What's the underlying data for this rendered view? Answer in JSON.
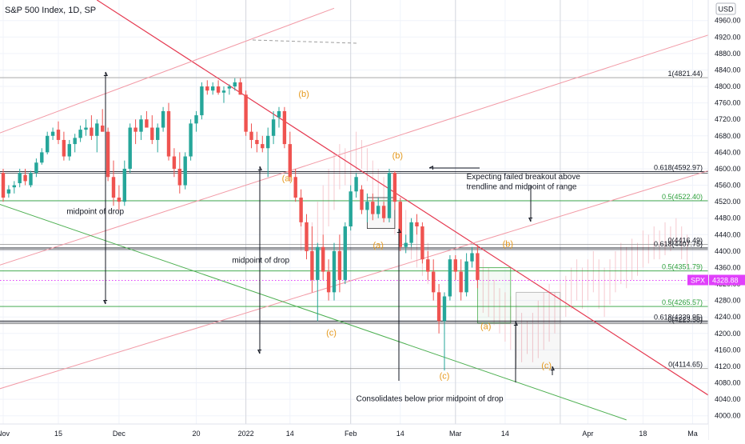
{
  "header": {
    "title": "S&P 500 Index, 1D, SP",
    "currency": "USD"
  },
  "chart_data": {
    "type": "candlestick",
    "title": "S&P 500 Index, 1D, SP",
    "y_axis": {
      "position": "right",
      "min": 3980,
      "max": 5010,
      "ticks": [
        4000,
        4040,
        4080,
        4120,
        4160,
        4200,
        4240,
        4280,
        4320,
        4360,
        4400,
        4440,
        4480,
        4520,
        4560,
        4600,
        4640,
        4680,
        4720,
        4760,
        4800,
        4840,
        4880,
        4920,
        4960
      ]
    },
    "x_axis": {
      "ticks": [
        {
          "label": "Nov",
          "x": 0
        },
        {
          "label": "15",
          "x": 10
        },
        {
          "label": "Dec",
          "x": 21
        },
        {
          "label": "20",
          "x": 35
        },
        {
          "label": "2022",
          "x": 44
        },
        {
          "label": "14",
          "x": 52
        },
        {
          "label": "Feb",
          "x": 63
        },
        {
          "label": "14",
          "x": 72
        },
        {
          "label": "Mar",
          "x": 82
        },
        {
          "label": "14",
          "x": 91
        },
        {
          "label": "Apr",
          "x": 106
        },
        {
          "label": "18",
          "x": 116
        },
        {
          "label": "Ma",
          "x": 125
        }
      ]
    },
    "last_price": {
      "label": "SPX",
      "value": 4328.88,
      "color": "#e040fb"
    },
    "candles": [
      {
        "x": 0,
        "o": 4590,
        "h": 4600,
        "l": 4520,
        "c": 4530
      },
      {
        "x": 1,
        "o": 4540,
        "h": 4560,
        "l": 4530,
        "c": 4550
      },
      {
        "x": 2,
        "o": 4555,
        "h": 4570,
        "l": 4540,
        "c": 4560
      },
      {
        "x": 3,
        "o": 4565,
        "h": 4600,
        "l": 4555,
        "c": 4590
      },
      {
        "x": 4,
        "o": 4585,
        "h": 4600,
        "l": 4560,
        "c": 4570
      },
      {
        "x": 5,
        "o": 4560,
        "h": 4595,
        "l": 4555,
        "c": 4590
      },
      {
        "x": 6,
        "o": 4590,
        "h": 4625,
        "l": 4580,
        "c": 4615
      },
      {
        "x": 7,
        "o": 4615,
        "h": 4650,
        "l": 4610,
        "c": 4640
      },
      {
        "x": 8,
        "o": 4640,
        "h": 4690,
        "l": 4635,
        "c": 4680
      },
      {
        "x": 9,
        "o": 4680,
        "h": 4700,
        "l": 4670,
        "c": 4690
      },
      {
        "x": 10,
        "o": 4695,
        "h": 4715,
        "l": 4660,
        "c": 4670
      },
      {
        "x": 11,
        "o": 4670,
        "h": 4690,
        "l": 4620,
        "c": 4630
      },
      {
        "x": 12,
        "o": 4630,
        "h": 4670,
        "l": 4620,
        "c": 4660
      },
      {
        "x": 13,
        "o": 4660,
        "h": 4685,
        "l": 4640,
        "c": 4675
      },
      {
        "x": 14,
        "o": 4675,
        "h": 4705,
        "l": 4665,
        "c": 4695
      },
      {
        "x": 15,
        "o": 4695,
        "h": 4720,
        "l": 4680,
        "c": 4700
      },
      {
        "x": 16,
        "o": 4700,
        "h": 4730,
        "l": 4670,
        "c": 4680
      },
      {
        "x": 17,
        "o": 4680,
        "h": 4720,
        "l": 4640,
        "c": 4710
      },
      {
        "x": 18,
        "o": 4705,
        "h": 4745,
        "l": 4690,
        "c": 4690
      },
      {
        "x": 19,
        "o": 4690,
        "h": 4700,
        "l": 4570,
        "c": 4580
      },
      {
        "x": 20,
        "o": 4580,
        "h": 4620,
        "l": 4510,
        "c": 4530
      },
      {
        "x": 21,
        "o": 4530,
        "h": 4560,
        "l": 4500,
        "c": 4520
      },
      {
        "x": 22,
        "o": 4520,
        "h": 4620,
        "l": 4510,
        "c": 4600
      },
      {
        "x": 23,
        "o": 4600,
        "h": 4710,
        "l": 4590,
        "c": 4700
      },
      {
        "x": 24,
        "o": 4700,
        "h": 4720,
        "l": 4660,
        "c": 4690
      },
      {
        "x": 25,
        "o": 4690,
        "h": 4730,
        "l": 4670,
        "c": 4720
      },
      {
        "x": 26,
        "o": 4720,
        "h": 4740,
        "l": 4700,
        "c": 4700
      },
      {
        "x": 27,
        "o": 4700,
        "h": 4730,
        "l": 4660,
        "c": 4670
      },
      {
        "x": 28,
        "o": 4670,
        "h": 4710,
        "l": 4640,
        "c": 4700
      },
      {
        "x": 29,
        "o": 4700,
        "h": 4750,
        "l": 4690,
        "c": 4740
      },
      {
        "x": 30,
        "o": 4740,
        "h": 4760,
        "l": 4620,
        "c": 4630
      },
      {
        "x": 31,
        "o": 4630,
        "h": 4650,
        "l": 4580,
        "c": 4600
      },
      {
        "x": 32,
        "o": 4600,
        "h": 4640,
        "l": 4540,
        "c": 4560
      },
      {
        "x": 33,
        "o": 4560,
        "h": 4640,
        "l": 4550,
        "c": 4630
      },
      {
        "x": 34,
        "o": 4630,
        "h": 4720,
        "l": 4620,
        "c": 4710
      },
      {
        "x": 35,
        "o": 4710,
        "h": 4740,
        "l": 4690,
        "c": 4730
      },
      {
        "x": 36,
        "o": 4730,
        "h": 4810,
        "l": 4720,
        "c": 4800
      },
      {
        "x": 37,
        "o": 4800,
        "h": 4815,
        "l": 4780,
        "c": 4790
      },
      {
        "x": 38,
        "o": 4790,
        "h": 4810,
        "l": 4780,
        "c": 4800
      },
      {
        "x": 39,
        "o": 4800,
        "h": 4815,
        "l": 4780,
        "c": 4785
      },
      {
        "x": 40,
        "o": 4785,
        "h": 4800,
        "l": 4760,
        "c": 4790
      },
      {
        "x": 41,
        "o": 4795,
        "h": 4805,
        "l": 4780,
        "c": 4800
      },
      {
        "x": 42,
        "o": 4800,
        "h": 4820,
        "l": 4790,
        "c": 4810
      },
      {
        "x": 43,
        "o": 4810,
        "h": 4820,
        "l": 4780,
        "c": 4780
      },
      {
        "x": 44,
        "o": 4780,
        "h": 4790,
        "l": 4680,
        "c": 4690
      },
      {
        "x": 45,
        "o": 4690,
        "h": 4710,
        "l": 4650,
        "c": 4670
      },
      {
        "x": 46,
        "o": 4670,
        "h": 4690,
        "l": 4640,
        "c": 4660
      },
      {
        "x": 47,
        "o": 4660,
        "h": 4680,
        "l": 4640,
        "c": 4650
      },
      {
        "x": 48,
        "o": 4650,
        "h": 4700,
        "l": 4580,
        "c": 4680
      },
      {
        "x": 49,
        "o": 4680,
        "h": 4740,
        "l": 4660,
        "c": 4720
      },
      {
        "x": 50,
        "o": 4725,
        "h": 4750,
        "l": 4700,
        "c": 4740
      },
      {
        "x": 51,
        "o": 4740,
        "h": 4750,
        "l": 4650,
        "c": 4660
      },
      {
        "x": 52,
        "o": 4660,
        "h": 4690,
        "l": 4570,
        "c": 4580
      },
      {
        "x": 53,
        "o": 4580,
        "h": 4600,
        "l": 4520,
        "c": 4530
      },
      {
        "x": 54,
        "o": 4530,
        "h": 4550,
        "l": 4460,
        "c": 4470
      },
      {
        "x": 55,
        "o": 4470,
        "h": 4490,
        "l": 4380,
        "c": 4400
      },
      {
        "x": 56,
        "o": 4400,
        "h": 4460,
        "l": 4300,
        "c": 4330
      },
      {
        "x": 57,
        "o": 4330,
        "h": 4420,
        "l": 4230,
        "c": 4410
      },
      {
        "x": 58,
        "o": 4410,
        "h": 4440,
        "l": 4330,
        "c": 4350
      },
      {
        "x": 59,
        "o": 4350,
        "h": 4380,
        "l": 4280,
        "c": 4300
      },
      {
        "x": 60,
        "o": 4300,
        "h": 4420,
        "l": 4280,
        "c": 4400
      },
      {
        "x": 61,
        "o": 4400,
        "h": 4440,
        "l": 4300,
        "c": 4330
      },
      {
        "x": 62,
        "o": 4330,
        "h": 4470,
        "l": 4320,
        "c": 4460
      },
      {
        "x": 63,
        "o": 4460,
        "h": 4560,
        "l": 4450,
        "c": 4545
      },
      {
        "x": 64,
        "o": 4545,
        "h": 4590,
        "l": 4530,
        "c": 4580
      },
      {
        "x": 65,
        "o": 4550,
        "h": 4560,
        "l": 4490,
        "c": 4500
      },
      {
        "x": 66,
        "o": 4500,
        "h": 4540,
        "l": 4470,
        "c": 4520
      },
      {
        "x": 67,
        "o": 4520,
        "h": 4540,
        "l": 4475,
        "c": 4490
      },
      {
        "x": 68,
        "o": 4490,
        "h": 4530,
        "l": 4480,
        "c": 4510
      },
      {
        "x": 69,
        "o": 4510,
        "h": 4520,
        "l": 4470,
        "c": 4480
      },
      {
        "x": 70,
        "o": 4480,
        "h": 4600,
        "l": 4470,
        "c": 4590
      },
      {
        "x": 71,
        "o": 4590,
        "h": 4595,
        "l": 4500,
        "c": 4520
      },
      {
        "x": 72,
        "o": 4520,
        "h": 4530,
        "l": 4400,
        "c": 4410
      },
      {
        "x": 73,
        "o": 4410,
        "h": 4440,
        "l": 4395,
        "c": 4420
      },
      {
        "x": 74,
        "o": 4420,
        "h": 4480,
        "l": 4410,
        "c": 4470
      },
      {
        "x": 75,
        "o": 4470,
        "h": 4490,
        "l": 4440,
        "c": 4460
      },
      {
        "x": 76,
        "o": 4460,
        "h": 4470,
        "l": 4370,
        "c": 4380
      },
      {
        "x": 77,
        "o": 4380,
        "h": 4400,
        "l": 4330,
        "c": 4350
      },
      {
        "x": 78,
        "o": 4350,
        "h": 4380,
        "l": 4280,
        "c": 4300
      },
      {
        "x": 79,
        "o": 4300,
        "h": 4320,
        "l": 4200,
        "c": 4230
      },
      {
        "x": 80,
        "o": 4230,
        "h": 4300,
        "l": 4110,
        "c": 4290
      },
      {
        "x": 81,
        "o": 4290,
        "h": 4390,
        "l": 4280,
        "c": 4380
      },
      {
        "x": 82,
        "o": 4380,
        "h": 4390,
        "l": 4330,
        "c": 4350
      },
      {
        "x": 83,
        "o": 4350,
        "h": 4380,
        "l": 4280,
        "c": 4300
      },
      {
        "x": 84,
        "o": 4300,
        "h": 4395,
        "l": 4290,
        "c": 4375
      },
      {
        "x": 85,
        "o": 4375,
        "h": 4410,
        "l": 4360,
        "c": 4395
      },
      {
        "x": 86,
        "o": 4395,
        "h": 4415,
        "l": 4310,
        "c": 4330
      }
    ],
    "ghost_path": [
      {
        "x": 54,
        "h": 4520,
        "l": 4400
      },
      {
        "x": 55,
        "h": 4480,
        "l": 4380
      },
      {
        "x": 56,
        "h": 4470,
        "l": 4400
      },
      {
        "x": 57,
        "h": 4520,
        "l": 4420
      },
      {
        "x": 58,
        "h": 4560,
        "l": 4440
      },
      {
        "x": 59,
        "h": 4600,
        "l": 4460
      },
      {
        "x": 60,
        "h": 4640,
        "l": 4500
      },
      {
        "x": 61,
        "h": 4660,
        "l": 4550
      },
      {
        "x": 62,
        "h": 4650,
        "l": 4560
      },
      {
        "x": 63,
        "h": 4640,
        "l": 4560
      },
      {
        "x": 64,
        "h": 4690,
        "l": 4580
      },
      {
        "x": 65,
        "h": 4670,
        "l": 4600
      },
      {
        "x": 66,
        "h": 4650,
        "l": 4570
      },
      {
        "x": 67,
        "h": 4620,
        "l": 4540
      },
      {
        "x": 68,
        "h": 4600,
        "l": 4520
      },
      {
        "x": 69,
        "h": 4580,
        "l": 4500
      },
      {
        "x": 70,
        "h": 4560,
        "l": 4470
      },
      {
        "x": 71,
        "h": 4540,
        "l": 4440
      },
      {
        "x": 72,
        "h": 4520,
        "l": 4420
      },
      {
        "x": 73,
        "h": 4500,
        "l": 4400
      },
      {
        "x": 74,
        "h": 4480,
        "l": 4380
      },
      {
        "x": 75,
        "h": 4460,
        "l": 4360
      },
      {
        "x": 76,
        "h": 4440,
        "l": 4340
      },
      {
        "x": 77,
        "h": 4420,
        "l": 4320
      },
      {
        "x": 87,
        "h": 4380,
        "l": 4250
      },
      {
        "x": 88,
        "h": 4360,
        "l": 4240
      },
      {
        "x": 89,
        "h": 4330,
        "l": 4220
      },
      {
        "x": 90,
        "h": 4310,
        "l": 4200
      },
      {
        "x": 91,
        "h": 4300,
        "l": 4180
      },
      {
        "x": 92,
        "h": 4290,
        "l": 4160
      },
      {
        "x": 93,
        "h": 4270,
        "l": 4140
      },
      {
        "x": 94,
        "h": 4250,
        "l": 4130
      },
      {
        "x": 95,
        "h": 4230,
        "l": 4150
      },
      {
        "x": 96,
        "h": 4250,
        "l": 4130
      },
      {
        "x": 97,
        "h": 4280,
        "l": 4140
      },
      {
        "x": 98,
        "h": 4300,
        "l": 4160
      },
      {
        "x": 99,
        "h": 4320,
        "l": 4180
      },
      {
        "x": 100,
        "h": 4300,
        "l": 4200
      },
      {
        "x": 101,
        "h": 4320,
        "l": 4220
      },
      {
        "x": 102,
        "h": 4340,
        "l": 4240
      },
      {
        "x": 103,
        "h": 4360,
        "l": 4260
      },
      {
        "x": 104,
        "h": 4380,
        "l": 4280
      },
      {
        "x": 105,
        "h": 4360,
        "l": 4260
      },
      {
        "x": 106,
        "h": 4380,
        "l": 4280
      },
      {
        "x": 107,
        "h": 4400,
        "l": 4300
      },
      {
        "x": 108,
        "h": 4380,
        "l": 4260
      },
      {
        "x": 109,
        "h": 4360,
        "l": 4240
      },
      {
        "x": 110,
        "h": 4380,
        "l": 4270
      },
      {
        "x": 111,
        "h": 4400,
        "l": 4300
      },
      {
        "x": 112,
        "h": 4420,
        "l": 4320
      },
      {
        "x": 113,
        "h": 4410,
        "l": 4310
      },
      {
        "x": 114,
        "h": 4430,
        "l": 4330
      },
      {
        "x": 115,
        "h": 4420,
        "l": 4340
      },
      {
        "x": 116,
        "h": 4450,
        "l": 4360
      },
      {
        "x": 117,
        "h": 4440,
        "l": 4370
      },
      {
        "x": 118,
        "h": 4460,
        "l": 4380
      },
      {
        "x": 119,
        "h": 4450,
        "l": 4380
      },
      {
        "x": 120,
        "h": 4470,
        "l": 4390
      },
      {
        "x": 121,
        "h": 4460,
        "l": 4400
      },
      {
        "x": 122,
        "h": 4480,
        "l": 4420
      },
      {
        "x": 123,
        "h": 4460,
        "l": 4380
      },
      {
        "x": 124,
        "h": 4440,
        "l": 4360
      }
    ],
    "hlines": [
      {
        "value": 4821.44,
        "label": "1(4821.44)",
        "color": "#9e9e9e",
        "style": "thin"
      },
      {
        "value": 4592.97,
        "label": "0.618(4592.97)",
        "color": "#131722",
        "style": "double"
      },
      {
        "value": 4522.4,
        "label": "0.5(4522.40)",
        "color": "#2b9f3a",
        "style": "thin"
      },
      {
        "value": 4416.49,
        "label": "0(4416.49)",
        "color": "#9e9e9e",
        "style": "thin"
      },
      {
        "value": 4407.75,
        "label": "0.618(4407.75)",
        "color": "#131722",
        "style": "double"
      },
      {
        "value": 4351.79,
        "label": "0.5(4351.79)",
        "color": "#2b9f3a",
        "style": "thin"
      },
      {
        "value": 4265.57,
        "label": "0.5(4265.57)",
        "color": "#2b9f3a",
        "style": "thin"
      },
      {
        "value": 4229.95,
        "label": "0.618(4229.95)",
        "color": "#131722",
        "style": "double"
      },
      {
        "value": 4223.58,
        "label": "0(4223.58)",
        "color": "#9e9e9e",
        "style": "thin"
      },
      {
        "value": 4114.65,
        "label": "0(4114.65)",
        "color": "#9e9e9e",
        "style": "thin"
      }
    ],
    "trendlines": [
      {
        "color": "#e53950",
        "x1": 17,
        "y1": 5010,
        "x2": 129,
        "y2": 4040,
        "width": 1.2
      },
      {
        "color": "#f29aa6",
        "x1": -2,
        "y1": 4680,
        "x2": 60,
        "y2": 4990,
        "width": 1
      },
      {
        "color": "#f29aa6",
        "x1": -2,
        "y1": 4360,
        "x2": 129,
        "y2": 4930,
        "width": 1
      },
      {
        "color": "#f29aa6",
        "x1": -2,
        "y1": 4060,
        "x2": 129,
        "y2": 4600,
        "width": 1
      },
      {
        "color": "#4caf50",
        "x1": -2,
        "y1": 4520,
        "x2": 113,
        "y2": 3990,
        "width": 1
      }
    ],
    "vlines": [
      44,
      63,
      82,
      101
    ],
    "boxes": [
      {
        "x1": 66,
        "x2": 71,
        "top": 4530,
        "bottom": 4455,
        "color": "#333333"
      },
      {
        "x1": 86,
        "x2": 92,
        "top": 4360,
        "bottom": 4225,
        "color": "#4caf50"
      },
      {
        "x1": 93,
        "x2": 101,
        "top": 4300,
        "bottom": 4115,
        "color": "#b0b0b0"
      }
    ],
    "waves": [
      {
        "text": "(b)",
        "x": 54.5,
        "y": 4775
      },
      {
        "text": "(a)",
        "x": 51.5,
        "y": 4570
      },
      {
        "text": "(b)",
        "x": 71.5,
        "y": 4625
      },
      {
        "text": "(a)",
        "x": 68,
        "y": 4408
      },
      {
        "text": "(c)",
        "x": 59.5,
        "y": 4195
      },
      {
        "text": "(b)",
        "x": 91.5,
        "y": 4410
      },
      {
        "text": "(a)",
        "x": 87.5,
        "y": 4210
      },
      {
        "text": "(c)",
        "x": 80,
        "y": 4090
      },
      {
        "text": "(c)",
        "x": 98.5,
        "y": 4115
      }
    ],
    "annotations": [
      {
        "text": "midpoint of drop",
        "x": 11.5,
        "y": 4490
      },
      {
        "text": "midpoint of drop",
        "x": 41.5,
        "y": 4372
      },
      {
        "text": "Expecting failed breakout above",
        "x": 84,
        "y": 4575
      },
      {
        "text": "trendline and midpoint of range",
        "x": 84,
        "y": 4550
      },
      {
        "text": "Consolidates below prior midpoint of drop",
        "x": 64,
        "y": 4035
      }
    ]
  }
}
